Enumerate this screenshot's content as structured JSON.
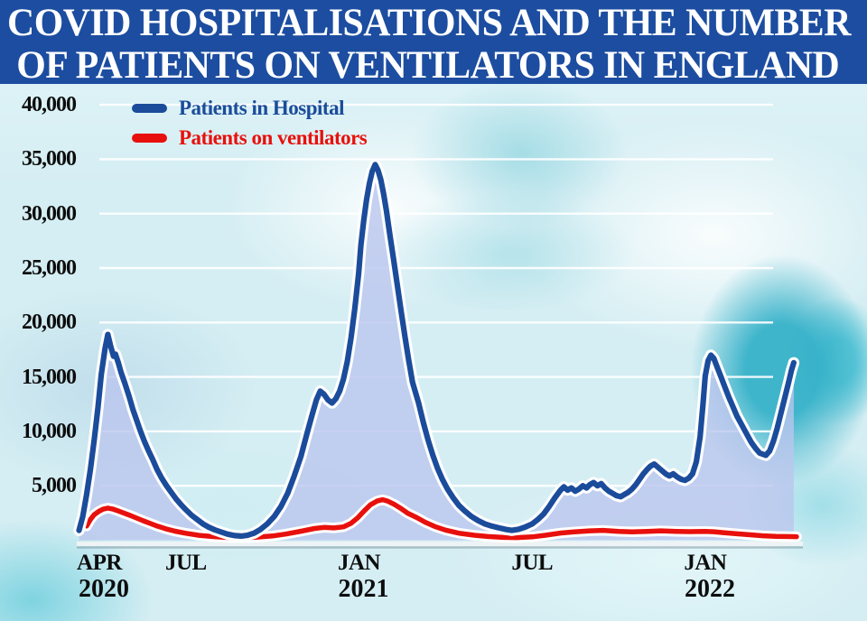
{
  "banner": {
    "line1": "COVID HOSPITALISATIONS AND THE NUMBER",
    "line2": "OF PATIENTS ON VENTILATORS IN ENGLAND",
    "bg_color": "#1c4da0",
    "text_color": "#ffffff"
  },
  "legend": [
    {
      "label": "Patients in Hospital",
      "color": "#1b4c9b"
    },
    {
      "label": "Patients on ventilators",
      "color": "#e8100c"
    }
  ],
  "chart_data": {
    "type": "area",
    "title": "COVID hospitalisations and the number of patients on ventilators in England",
    "xlabel": "",
    "ylabel": "",
    "ylim": [
      0,
      40000
    ],
    "grid": true,
    "legend_position": "top-left",
    "background": "blurred light-cyan hospital photo",
    "gridline_color": "rgba(255,255,255,0.9)",
    "y_ticks": [
      {
        "label": "40,000",
        "value": 40000
      },
      {
        "label": "35,000",
        "value": 35000
      },
      {
        "label": "30,000",
        "value": 30000
      },
      {
        "label": "25,000",
        "value": 25000
      },
      {
        "label": "20,000",
        "value": 20000
      },
      {
        "label": "15,000",
        "value": 15000
      },
      {
        "label": "10,000",
        "value": 10000
      },
      {
        "label": "5,000",
        "value": 5000
      }
    ],
    "x_ticks": [
      {
        "label": "APR",
        "year": "2020",
        "date": "2020-04-01"
      },
      {
        "label": "JUL",
        "year": "",
        "date": "2020-07-01"
      },
      {
        "label": "JAN",
        "year": "2021",
        "date": "2021-01-01"
      },
      {
        "label": "JUL",
        "year": "",
        "date": "2021-07-01"
      },
      {
        "label": "JAN",
        "year": "2022",
        "date": "2022-01-01"
      }
    ],
    "series": [
      {
        "name": "Patients in Hospital",
        "color": "#1b4c9b",
        "fill": "rgba(186,198,238,0.8)",
        "points": [
          [
            "2020-03-10",
            900
          ],
          [
            "2020-03-14",
            2200
          ],
          [
            "2020-03-18",
            4200
          ],
          [
            "2020-03-22",
            6500
          ],
          [
            "2020-03-26",
            9200
          ],
          [
            "2020-03-30",
            12200
          ],
          [
            "2020-04-03",
            15200
          ],
          [
            "2020-04-07",
            17600
          ],
          [
            "2020-04-10",
            18900
          ],
          [
            "2020-04-13",
            17800
          ],
          [
            "2020-04-16",
            16900
          ],
          [
            "2020-04-18",
            17100
          ],
          [
            "2020-04-21",
            16300
          ],
          [
            "2020-04-24",
            15400
          ],
          [
            "2020-04-28",
            14400
          ],
          [
            "2020-05-02",
            13200
          ],
          [
            "2020-05-06",
            12000
          ],
          [
            "2020-05-10",
            11000
          ],
          [
            "2020-05-14",
            10000
          ],
          [
            "2020-05-18",
            9100
          ],
          [
            "2020-05-22",
            8300
          ],
          [
            "2020-05-27",
            7400
          ],
          [
            "2020-06-01",
            6500
          ],
          [
            "2020-06-06",
            5700
          ],
          [
            "2020-06-11",
            5000
          ],
          [
            "2020-06-16",
            4400
          ],
          [
            "2020-06-21",
            3800
          ],
          [
            "2020-06-26",
            3300
          ],
          [
            "2020-07-01",
            2800
          ],
          [
            "2020-07-07",
            2300
          ],
          [
            "2020-07-13",
            1900
          ],
          [
            "2020-07-19",
            1500
          ],
          [
            "2020-07-25",
            1200
          ],
          [
            "2020-08-01",
            950
          ],
          [
            "2020-08-08",
            750
          ],
          [
            "2020-08-15",
            550
          ],
          [
            "2020-08-22",
            420
          ],
          [
            "2020-08-29",
            380
          ],
          [
            "2020-09-05",
            450
          ],
          [
            "2020-09-12",
            650
          ],
          [
            "2020-09-19",
            1000
          ],
          [
            "2020-09-26",
            1500
          ],
          [
            "2020-10-03",
            2200
          ],
          [
            "2020-10-10",
            3100
          ],
          [
            "2020-10-17",
            4300
          ],
          [
            "2020-10-24",
            5900
          ],
          [
            "2020-10-31",
            7700
          ],
          [
            "2020-11-07",
            9800
          ],
          [
            "2020-11-12",
            11400
          ],
          [
            "2020-11-17",
            12900
          ],
          [
            "2020-11-21",
            13700
          ],
          [
            "2020-11-25",
            13400
          ],
          [
            "2020-11-29",
            12900
          ],
          [
            "2020-12-03",
            12600
          ],
          [
            "2020-12-07",
            13000
          ],
          [
            "2020-12-11",
            13700
          ],
          [
            "2020-12-15",
            14800
          ],
          [
            "2020-12-19",
            16400
          ],
          [
            "2020-12-23",
            18600
          ],
          [
            "2020-12-27",
            21300
          ],
          [
            "2020-12-31",
            24500
          ],
          [
            "2021-01-03",
            27100
          ],
          [
            "2021-01-06",
            29400
          ],
          [
            "2021-01-09",
            31300
          ],
          [
            "2021-01-12",
            32800
          ],
          [
            "2021-01-15",
            33900
          ],
          [
            "2021-01-18",
            34500
          ],
          [
            "2021-01-21",
            34000
          ],
          [
            "2021-01-24",
            33100
          ],
          [
            "2021-01-27",
            31800
          ],
          [
            "2021-01-30",
            30200
          ],
          [
            "2021-02-03",
            28100
          ],
          [
            "2021-02-07",
            25800
          ],
          [
            "2021-02-11",
            23400
          ],
          [
            "2021-02-15",
            21000
          ],
          [
            "2021-02-19",
            18700
          ],
          [
            "2021-02-23",
            16500
          ],
          [
            "2021-02-27",
            14500
          ],
          [
            "2021-03-03",
            12600
          ],
          [
            "2021-03-08",
            10800
          ],
          [
            "2021-03-13",
            9200
          ],
          [
            "2021-03-18",
            7800
          ],
          [
            "2021-03-23",
            6600
          ],
          [
            "2021-03-28",
            5600
          ],
          [
            "2021-04-03",
            4700
          ],
          [
            "2021-04-09",
            3900
          ],
          [
            "2021-04-15",
            3200
          ],
          [
            "2021-04-21",
            2700
          ],
          [
            "2021-04-28",
            2200
          ],
          [
            "2021-05-05",
            1800
          ],
          [
            "2021-05-12",
            1500
          ],
          [
            "2021-05-19",
            1300
          ],
          [
            "2021-05-26",
            1150
          ],
          [
            "2021-06-03",
            1000
          ],
          [
            "2021-06-10",
            900
          ],
          [
            "2021-06-17",
            1000
          ],
          [
            "2021-06-24",
            1200
          ],
          [
            "2021-07-01",
            1500
          ],
          [
            "2021-07-07",
            1900
          ],
          [
            "2021-07-13",
            2400
          ],
          [
            "2021-07-19",
            3100
          ],
          [
            "2021-07-25",
            3900
          ],
          [
            "2021-07-31",
            4600
          ],
          [
            "2021-08-04",
            4900
          ],
          [
            "2021-08-08",
            4600
          ],
          [
            "2021-08-12",
            4800
          ],
          [
            "2021-08-16",
            4500
          ],
          [
            "2021-08-20",
            4700
          ],
          [
            "2021-08-24",
            5000
          ],
          [
            "2021-08-28",
            4800
          ],
          [
            "2021-09-01",
            5100
          ],
          [
            "2021-09-05",
            5300
          ],
          [
            "2021-09-09",
            5000
          ],
          [
            "2021-09-13",
            5200
          ],
          [
            "2021-09-17",
            4800
          ],
          [
            "2021-09-21",
            4500
          ],
          [
            "2021-09-25",
            4300
          ],
          [
            "2021-09-29",
            4100
          ],
          [
            "2021-10-03",
            4000
          ],
          [
            "2021-10-07",
            4200
          ],
          [
            "2021-10-11",
            4400
          ],
          [
            "2021-10-15",
            4700
          ],
          [
            "2021-10-19",
            5100
          ],
          [
            "2021-10-23",
            5600
          ],
          [
            "2021-10-27",
            6100
          ],
          [
            "2021-10-31",
            6500
          ],
          [
            "2021-11-04",
            6800
          ],
          [
            "2021-11-08",
            7000
          ],
          [
            "2021-11-12",
            6700
          ],
          [
            "2021-11-16",
            6400
          ],
          [
            "2021-11-20",
            6100
          ],
          [
            "2021-11-24",
            5900
          ],
          [
            "2021-11-28",
            6100
          ],
          [
            "2021-12-02",
            5800
          ],
          [
            "2021-12-06",
            5600
          ],
          [
            "2021-12-10",
            5500
          ],
          [
            "2021-12-14",
            5700
          ],
          [
            "2021-12-18",
            6100
          ],
          [
            "2021-12-22",
            7200
          ],
          [
            "2021-12-26",
            9500
          ],
          [
            "2021-12-29",
            12500
          ],
          [
            "2022-01-01",
            15100
          ],
          [
            "2022-01-04",
            16500
          ],
          [
            "2022-01-07",
            17000
          ],
          [
            "2022-01-10",
            16700
          ],
          [
            "2022-01-14",
            15800
          ],
          [
            "2022-01-18",
            14900
          ],
          [
            "2022-01-22",
            14000
          ],
          [
            "2022-01-26",
            13100
          ],
          [
            "2022-01-30",
            12300
          ],
          [
            "2022-02-04",
            11400
          ],
          [
            "2022-02-09",
            10600
          ],
          [
            "2022-02-14",
            9800
          ],
          [
            "2022-02-19",
            9000
          ],
          [
            "2022-02-24",
            8400
          ],
          [
            "2022-02-28",
            8000
          ],
          [
            "2022-03-04",
            7800
          ],
          [
            "2022-03-08",
            8200
          ],
          [
            "2022-03-12",
            9100
          ],
          [
            "2022-03-16",
            10300
          ],
          [
            "2022-03-20",
            11700
          ],
          [
            "2022-03-24",
            13100
          ],
          [
            "2022-03-28",
            14500
          ],
          [
            "2022-03-31",
            15600
          ],
          [
            "2022-04-03",
            16300
          ]
        ]
      },
      {
        "name": "Patients on ventilators",
        "color": "#e8100c",
        "fill": "none",
        "points": [
          [
            "2020-03-18",
            1300
          ],
          [
            "2020-03-22",
            1900
          ],
          [
            "2020-03-26",
            2350
          ],
          [
            "2020-03-31",
            2650
          ],
          [
            "2020-04-05",
            2850
          ],
          [
            "2020-04-10",
            2950
          ],
          [
            "2020-04-15",
            2870
          ],
          [
            "2020-04-20",
            2720
          ],
          [
            "2020-04-26",
            2520
          ],
          [
            "2020-05-03",
            2280
          ],
          [
            "2020-05-10",
            2030
          ],
          [
            "2020-05-17",
            1780
          ],
          [
            "2020-05-24",
            1550
          ],
          [
            "2020-06-01",
            1300
          ],
          [
            "2020-06-10",
            1050
          ],
          [
            "2020-06-20",
            830
          ],
          [
            "2020-07-01",
            640
          ],
          [
            "2020-07-15",
            450
          ],
          [
            "2020-08-01",
            320
          ],
          [
            "2020-08-15",
            250
          ],
          [
            "2020-09-01",
            230
          ],
          [
            "2020-09-15",
            280
          ],
          [
            "2020-10-01",
            390
          ],
          [
            "2020-10-15",
            560
          ],
          [
            "2020-11-01",
            830
          ],
          [
            "2020-11-15",
            1080
          ],
          [
            "2020-11-25",
            1180
          ],
          [
            "2020-12-05",
            1130
          ],
          [
            "2020-12-15",
            1230
          ],
          [
            "2020-12-23",
            1550
          ],
          [
            "2020-12-30",
            2050
          ],
          [
            "2021-01-06",
            2650
          ],
          [
            "2021-01-13",
            3250
          ],
          [
            "2021-01-20",
            3600
          ],
          [
            "2021-01-26",
            3720
          ],
          [
            "2021-02-01",
            3580
          ],
          [
            "2021-02-08",
            3280
          ],
          [
            "2021-02-15",
            2900
          ],
          [
            "2021-02-22",
            2480
          ],
          [
            "2021-03-01",
            2080
          ],
          [
            "2021-03-10",
            1650
          ],
          [
            "2021-03-20",
            1260
          ],
          [
            "2021-04-01",
            930
          ],
          [
            "2021-04-15",
            650
          ],
          [
            "2021-05-01",
            460
          ],
          [
            "2021-05-15",
            340
          ],
          [
            "2021-06-01",
            260
          ],
          [
            "2021-06-15",
            240
          ],
          [
            "2021-07-01",
            310
          ],
          [
            "2021-07-15",
            460
          ],
          [
            "2021-08-01",
            660
          ],
          [
            "2021-08-15",
            760
          ],
          [
            "2021-09-01",
            860
          ],
          [
            "2021-09-15",
            900
          ],
          [
            "2021-10-01",
            810
          ],
          [
            "2021-10-15",
            760
          ],
          [
            "2021-11-01",
            810
          ],
          [
            "2021-11-15",
            860
          ],
          [
            "2021-12-01",
            810
          ],
          [
            "2021-12-15",
            790
          ],
          [
            "2022-01-01",
            810
          ],
          [
            "2022-01-10",
            780
          ],
          [
            "2022-01-20",
            700
          ],
          [
            "2022-02-01",
            610
          ],
          [
            "2022-02-15",
            510
          ],
          [
            "2022-03-01",
            410
          ],
          [
            "2022-03-15",
            360
          ],
          [
            "2022-04-01",
            330
          ],
          [
            "2022-04-06",
            320
          ]
        ]
      }
    ]
  }
}
